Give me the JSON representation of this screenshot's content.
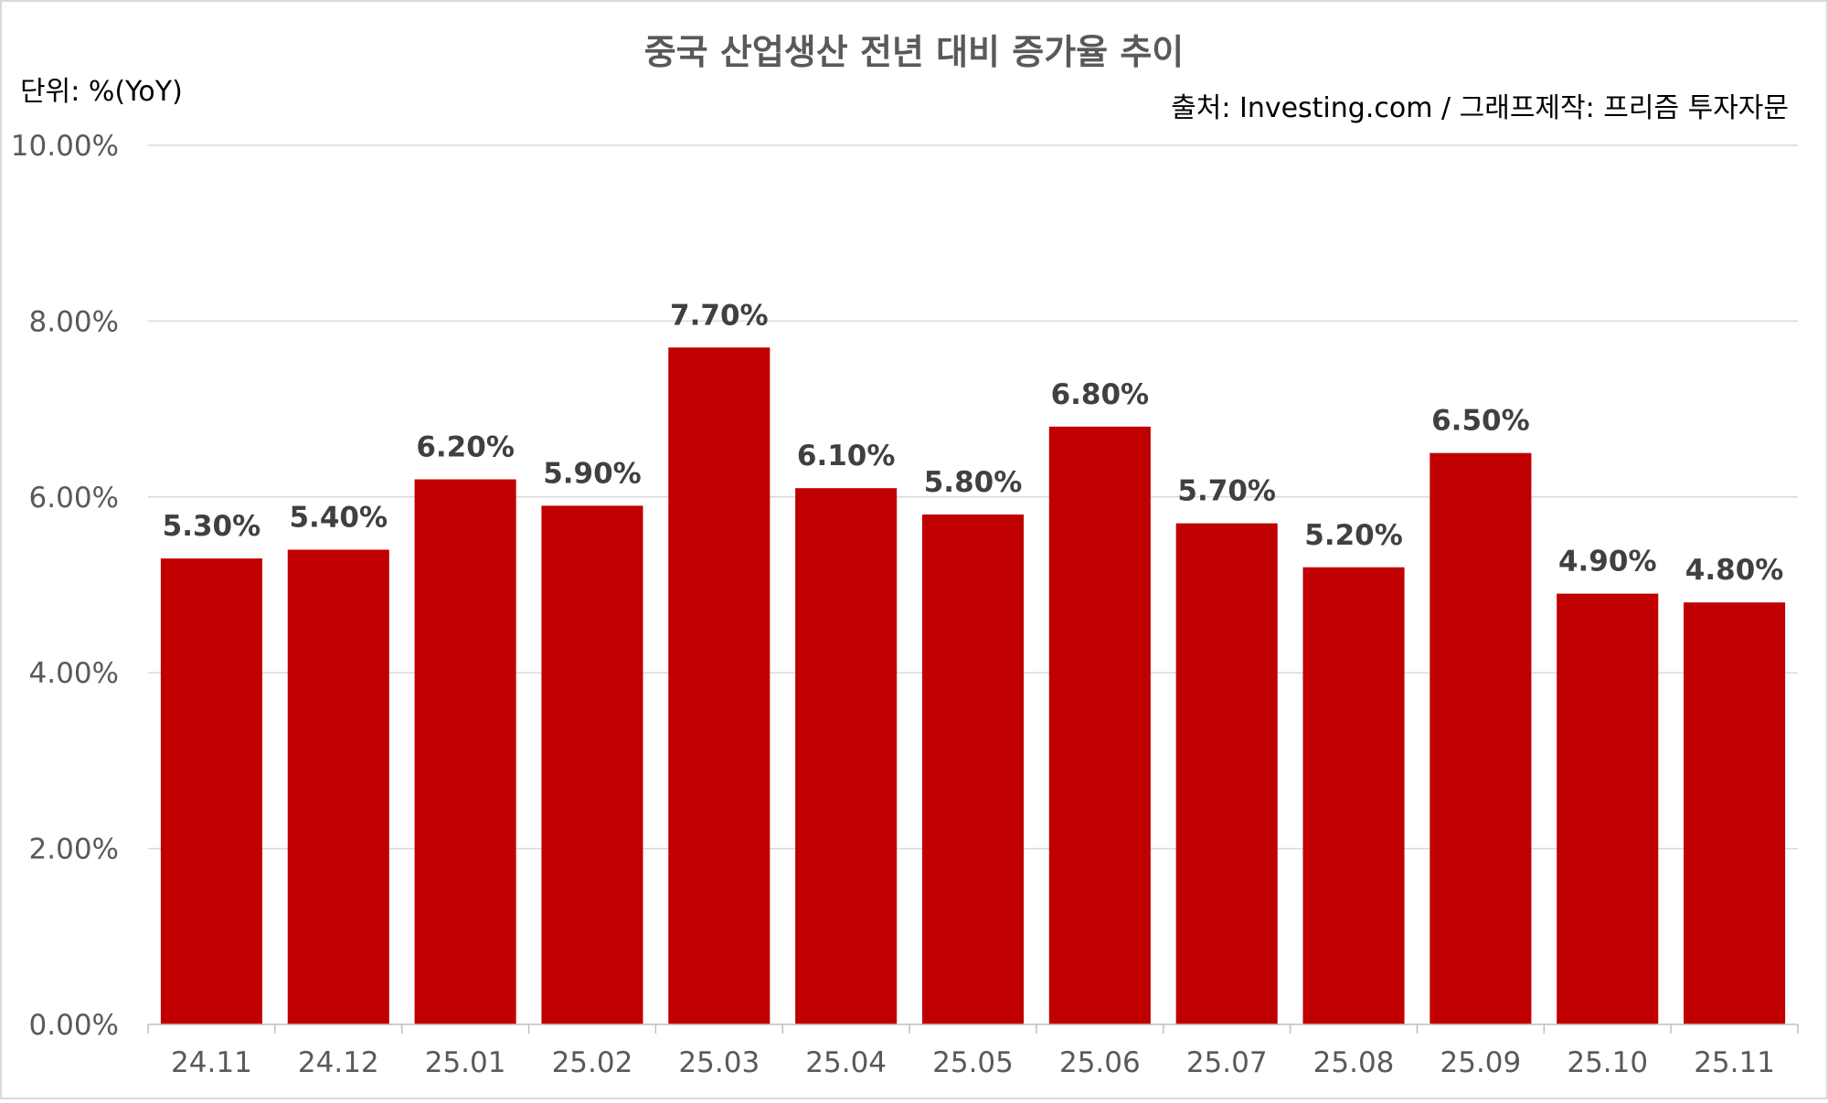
{
  "chart_data": {
    "type": "bar",
    "title": "중국 산업생산 전년 대비 증가율 추이",
    "unit_label": "단위: %(YoY)",
    "source": "출처: Investing.com  / 그래프제작: 프리즘 투자자문",
    "categories": [
      "24.11",
      "24.12",
      "25.01",
      "25.02",
      "25.03",
      "25.04",
      "25.05",
      "25.06",
      "25.07",
      "25.08",
      "25.09",
      "25.10",
      "25.11"
    ],
    "values": [
      5.3,
      5.4,
      6.2,
      5.9,
      7.7,
      6.1,
      5.8,
      6.8,
      5.7,
      5.2,
      6.5,
      4.9,
      4.8
    ],
    "data_labels": [
      "5.30%",
      "5.40%",
      "6.20%",
      "5.90%",
      "7.70%",
      "6.10%",
      "5.80%",
      "6.80%",
      "5.70%",
      "5.20%",
      "6.50%",
      "4.90%",
      "4.80%"
    ],
    "yticks": [
      "0.00%",
      "2.00%",
      "4.00%",
      "6.00%",
      "8.00%",
      "10.00%"
    ],
    "ylim": [
      0,
      10
    ],
    "bar_color": "#C00000",
    "grid": true,
    "legend": "none"
  }
}
